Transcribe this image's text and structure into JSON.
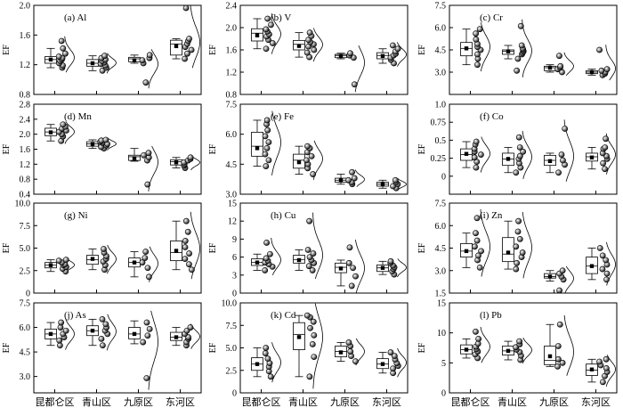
{
  "figure": {
    "y_axis_label": "EF",
    "x_categories": [
      "昆都仑区",
      "青山区",
      "九原区",
      "东河区"
    ]
  },
  "chart_data": [
    {
      "type": "box",
      "title": "(a) Al",
      "ylim": [
        0.8,
        2.0
      ],
      "yticks": [
        0.8,
        1.2,
        1.6,
        2.0
      ],
      "series": [
        {
          "category": "昆都仑区",
          "q1": 1.22,
          "median": 1.27,
          "q3": 1.31,
          "whisker_low": 1.16,
          "whisker_high": 1.42,
          "mean": 1.27,
          "points": [
            1.16,
            1.19,
            1.22,
            1.25,
            1.27,
            1.29,
            1.31,
            1.35,
            1.42,
            1.52
          ]
        },
        {
          "category": "青山区",
          "q1": 1.18,
          "median": 1.22,
          "q3": 1.27,
          "whisker_low": 1.12,
          "whisker_high": 1.32,
          "mean": 1.22,
          "points": [
            1.12,
            1.16,
            1.19,
            1.21,
            1.23,
            1.25,
            1.27,
            1.29,
            1.32
          ]
        },
        {
          "category": "九原区",
          "q1": 1.24,
          "median": 1.28,
          "q3": 1.3,
          "whisker_low": 1.22,
          "whisker_high": 1.33,
          "mean": 1.26,
          "points": [
            0.96,
            1.22,
            1.26,
            1.29,
            1.33
          ]
        },
        {
          "category": "东河区",
          "q1": 1.33,
          "median": 1.48,
          "q3": 1.53,
          "whisker_low": 1.28,
          "whisker_high": 1.55,
          "mean": 1.45,
          "points": [
            1.28,
            1.35,
            1.4,
            1.44,
            1.48,
            1.52,
            1.55,
            2.0
          ]
        }
      ]
    },
    {
      "type": "box",
      "title": "(b) V",
      "ylim": [
        0.8,
        2.4
      ],
      "yticks": [
        0.8,
        1.2,
        1.6,
        2.0,
        2.4
      ],
      "series": [
        {
          "category": "昆都仑区",
          "q1": 1.76,
          "median": 1.9,
          "q3": 1.98,
          "whisker_low": 1.62,
          "whisker_high": 2.16,
          "mean": 1.86,
          "points": [
            1.62,
            1.72,
            1.78,
            1.84,
            1.88,
            1.93,
            1.97,
            2.05,
            2.16
          ]
        },
        {
          "category": "青山区",
          "q1": 1.6,
          "median": 1.7,
          "q3": 1.77,
          "whisker_low": 1.47,
          "whisker_high": 1.91,
          "mean": 1.67,
          "points": [
            1.47,
            1.55,
            1.6,
            1.66,
            1.7,
            1.74,
            1.78,
            1.85,
            1.91
          ]
        },
        {
          "category": "九原区",
          "q1": 1.46,
          "median": 1.5,
          "q3": 1.52,
          "whisker_low": 1.44,
          "whisker_high": 1.54,
          "mean": 1.49,
          "points": [
            0.98,
            1.46,
            1.5,
            1.54
          ]
        },
        {
          "category": "东河区",
          "q1": 1.44,
          "median": 1.5,
          "q3": 1.55,
          "whisker_low": 1.36,
          "whisker_high": 1.62,
          "mean": 1.49,
          "points": [
            1.36,
            1.42,
            1.46,
            1.5,
            1.53,
            1.57,
            1.62,
            1.68
          ]
        }
      ]
    },
    {
      "type": "box",
      "title": "(c) Cr",
      "ylim": [
        1.5,
        7.5
      ],
      "yticks": [
        3.0,
        4.5,
        6.0,
        7.5
      ],
      "series": [
        {
          "category": "昆都仑区",
          "q1": 4.1,
          "median": 4.6,
          "q3": 5.0,
          "whisker_low": 3.5,
          "whisker_high": 5.9,
          "mean": 4.6,
          "points": [
            3.5,
            3.9,
            4.2,
            4.5,
            4.7,
            4.9,
            5.2,
            5.6,
            5.9
          ]
        },
        {
          "category": "青山区",
          "q1": 4.2,
          "median": 4.4,
          "q3": 4.5,
          "whisker_low": 3.9,
          "whisker_high": 4.8,
          "mean": 4.4,
          "points": [
            3.1,
            3.9,
            4.2,
            4.3,
            4.4,
            4.5,
            4.6,
            4.8,
            6.1
          ]
        },
        {
          "category": "九原区",
          "q1": 3.1,
          "median": 3.3,
          "q3": 3.4,
          "whisker_low": 3.0,
          "whisker_high": 3.5,
          "mean": 3.3,
          "points": [
            3.0,
            3.2,
            3.3,
            3.4,
            4.1
          ]
        },
        {
          "category": "东河区",
          "q1": 2.9,
          "median": 3.0,
          "q3": 3.1,
          "whisker_low": 2.8,
          "whisker_high": 3.2,
          "mean": 3.0,
          "points": [
            2.8,
            2.9,
            3.0,
            3.1,
            3.2,
            4.5
          ]
        }
      ]
    },
    {
      "type": "box",
      "title": "(d) Mn",
      "ylim": [
        0.4,
        2.8
      ],
      "yticks": [
        0.4,
        0.8,
        1.2,
        1.6,
        2.0,
        2.4,
        2.8
      ],
      "series": [
        {
          "category": "昆都仑区",
          "q1": 1.96,
          "median": 2.06,
          "q3": 2.16,
          "whisker_low": 1.82,
          "whisker_high": 2.26,
          "mean": 2.05,
          "points": [
            1.82,
            1.94,
            2.0,
            2.06,
            2.1,
            2.15,
            2.2,
            2.26
          ]
        },
        {
          "category": "青山区",
          "q1": 1.68,
          "median": 1.74,
          "q3": 1.8,
          "whisker_low": 1.62,
          "whisker_high": 1.85,
          "mean": 1.73,
          "points": [
            1.62,
            1.66,
            1.7,
            1.74,
            1.77,
            1.8,
            1.83,
            1.85
          ]
        },
        {
          "category": "九原区",
          "q1": 1.3,
          "median": 1.4,
          "q3": 1.44,
          "whisker_low": 1.28,
          "whisker_high": 1.62,
          "mean": 1.36,
          "points": [
            0.66,
            1.3,
            1.38,
            1.44,
            1.5
          ]
        },
        {
          "category": "东河区",
          "q1": 1.18,
          "median": 1.27,
          "q3": 1.32,
          "whisker_low": 1.1,
          "whisker_high": 1.38,
          "mean": 1.25,
          "points": [
            1.1,
            1.16,
            1.2,
            1.25,
            1.3,
            1.34,
            1.38
          ]
        }
      ]
    },
    {
      "type": "box",
      "title": "(e) Fe",
      "ylim": [
        3.0,
        7.5
      ],
      "yticks": [
        3.0,
        4.5,
        6.0,
        7.5
      ],
      "series": [
        {
          "category": "昆都仑区",
          "q1": 4.9,
          "median": 5.4,
          "q3": 6.1,
          "whisker_low": 4.4,
          "whisker_high": 6.7,
          "mean": 5.3,
          "points": [
            4.4,
            4.7,
            5.0,
            5.3,
            5.6,
            5.9,
            6.2,
            6.5,
            6.7
          ]
        },
        {
          "category": "青山区",
          "q1": 4.3,
          "median": 4.7,
          "q3": 5.0,
          "whisker_low": 4.0,
          "whisker_high": 5.4,
          "mean": 4.6,
          "points": [
            4.0,
            4.3,
            4.5,
            4.7,
            4.9,
            5.1,
            5.3,
            5.4
          ]
        },
        {
          "category": "九原区",
          "q1": 3.6,
          "median": 3.7,
          "q3": 3.8,
          "whisker_low": 3.5,
          "whisker_high": 4.0,
          "mean": 3.7,
          "points": [
            3.5,
            3.6,
            3.7,
            3.8,
            4.1
          ]
        },
        {
          "category": "东河区",
          "q1": 3.4,
          "median": 3.5,
          "q3": 3.6,
          "whisker_low": 3.3,
          "whisker_high": 3.7,
          "mean": 3.5,
          "points": [
            3.3,
            3.4,
            3.5,
            3.6,
            3.7
          ]
        }
      ]
    },
    {
      "type": "box",
      "title": "(f) Co",
      "ylim": [
        -0.25,
        1.0
      ],
      "yticks": [
        0,
        0.25,
        0.5,
        0.75,
        1.0
      ],
      "series": [
        {
          "category": "昆都仑区",
          "q1": 0.22,
          "median": 0.3,
          "q3": 0.38,
          "whisker_low": 0.12,
          "whisker_high": 0.48,
          "mean": 0.31,
          "points": [
            0.12,
            0.2,
            0.26,
            0.3,
            0.34,
            0.38,
            0.44,
            0.48
          ]
        },
        {
          "category": "青山区",
          "q1": 0.15,
          "median": 0.24,
          "q3": 0.32,
          "whisker_low": 0.05,
          "whisker_high": 0.4,
          "mean": 0.24,
          "points": [
            0.05,
            0.12,
            0.18,
            0.24,
            0.28,
            0.34,
            0.4,
            0.54
          ]
        },
        {
          "category": "九原区",
          "q1": 0.15,
          "median": 0.22,
          "q3": 0.29,
          "whisker_low": 0.05,
          "whisker_high": 0.32,
          "mean": 0.21,
          "points": [
            0.05,
            0.16,
            0.22,
            0.3,
            0.66
          ]
        },
        {
          "category": "东河区",
          "q1": 0.21,
          "median": 0.27,
          "q3": 0.32,
          "whisker_low": 0.1,
          "whisker_high": 0.4,
          "mean": 0.26,
          "points": [
            0.1,
            0.18,
            0.24,
            0.28,
            0.32,
            0.38,
            0.4,
            0.52
          ]
        }
      ]
    },
    {
      "type": "box",
      "title": "(g) Ni",
      "ylim": [
        0,
        10.0
      ],
      "yticks": [
        0,
        2.5,
        5.0,
        7.5,
        10.0
      ],
      "series": [
        {
          "category": "昆都仑区",
          "q1": 2.8,
          "median": 3.1,
          "q3": 3.4,
          "whisker_low": 2.4,
          "whisker_high": 3.7,
          "mean": 3.1,
          "points": [
            2.4,
            2.7,
            2.9,
            3.1,
            3.2,
            3.4,
            3.6,
            3.7
          ]
        },
        {
          "category": "青山区",
          "q1": 3.2,
          "median": 3.7,
          "q3": 4.2,
          "whisker_low": 2.6,
          "whisker_high": 4.9,
          "mean": 3.8,
          "points": [
            2.6,
            3.1,
            3.5,
            3.8,
            4.1,
            4.5,
            4.9
          ]
        },
        {
          "category": "九原区",
          "q1": 2.9,
          "median": 3.4,
          "q3": 3.9,
          "whisker_low": 1.8,
          "whisker_high": 4.6,
          "mean": 3.4,
          "points": [
            1.8,
            2.8,
            3.4,
            3.9,
            4.6
          ]
        },
        {
          "category": "东河区",
          "q1": 3.6,
          "median": 4.5,
          "q3": 5.8,
          "whisker_low": 2.6,
          "whisker_high": 8.0,
          "mean": 4.7,
          "points": [
            2.6,
            3.2,
            3.8,
            4.4,
            5.1,
            5.8,
            6.8,
            8.0
          ]
        }
      ]
    },
    {
      "type": "box",
      "title": "(h) Cu",
      "ylim": [
        0,
        15.0
      ],
      "yticks": [
        0,
        3,
        6,
        9,
        12,
        15
      ],
      "series": [
        {
          "category": "昆都仑区",
          "q1": 4.6,
          "median": 5.1,
          "q3": 5.7,
          "whisker_low": 3.8,
          "whisker_high": 6.5,
          "mean": 5.1,
          "points": [
            3.8,
            4.4,
            4.8,
            5.1,
            5.4,
            5.8,
            6.5,
            8.4
          ]
        },
        {
          "category": "青山区",
          "q1": 5.0,
          "median": 5.6,
          "q3": 6.3,
          "whisker_low": 3.8,
          "whisker_high": 7.2,
          "mean": 5.5,
          "points": [
            3.8,
            4.5,
            5.0,
            5.5,
            6.0,
            6.6,
            7.2,
            12.0
          ]
        },
        {
          "category": "九原区",
          "q1": 3.4,
          "median": 4.3,
          "q3": 5.0,
          "whisker_low": 1.2,
          "whisker_high": 5.5,
          "mean": 4.1,
          "points": [
            1.2,
            2.8,
            4.2,
            5.0,
            7.6
          ]
        },
        {
          "category": "东河区",
          "q1": 3.6,
          "median": 4.2,
          "q3": 4.7,
          "whisker_low": 3.1,
          "whisker_high": 5.3,
          "mean": 4.2,
          "points": [
            3.1,
            3.6,
            4.0,
            4.3,
            4.6,
            5.0,
            5.3
          ]
        }
      ]
    },
    {
      "type": "box",
      "title": "(i) Zn",
      "ylim": [
        1.5,
        7.5
      ],
      "yticks": [
        1.5,
        3.0,
        4.5,
        6.0,
        7.5
      ],
      "series": [
        {
          "category": "昆都仑区",
          "q1": 3.9,
          "median": 4.3,
          "q3": 4.8,
          "whisker_low": 3.2,
          "whisker_high": 5.5,
          "mean": 4.3,
          "points": [
            3.2,
            3.7,
            4.0,
            4.3,
            4.6,
            5.0,
            5.5,
            6.5
          ]
        },
        {
          "category": "青山区",
          "q1": 3.6,
          "median": 4.1,
          "q3": 5.2,
          "whisker_low": 3.1,
          "whisker_high": 6.3,
          "mean": 4.2,
          "points": [
            3.1,
            3.5,
            3.9,
            4.2,
            4.6,
            5.1,
            5.6,
            6.3
          ]
        },
        {
          "category": "九原区",
          "q1": 2.5,
          "median": 2.6,
          "q3": 2.8,
          "whisker_low": 2.3,
          "whisker_high": 3.0,
          "mean": 2.6,
          "points": [
            1.6,
            2.4,
            2.6,
            2.8,
            3.0
          ]
        },
        {
          "category": "东河区",
          "q1": 2.8,
          "median": 3.3,
          "q3": 3.9,
          "whisker_low": 2.4,
          "whisker_high": 4.5,
          "mean": 3.3,
          "points": [
            2.4,
            2.8,
            3.1,
            3.4,
            3.7,
            4.0,
            4.5
          ]
        }
      ]
    },
    {
      "type": "box",
      "title": "(j) As",
      "ylim": [
        2.0,
        7.5
      ],
      "yticks": [
        3.0,
        4.5,
        6.0,
        7.5
      ],
      "series": [
        {
          "category": "昆都仑区",
          "q1": 5.3,
          "median": 5.6,
          "q3": 5.9,
          "whisker_low": 4.9,
          "whisker_high": 6.3,
          "mean": 5.6,
          "points": [
            4.9,
            5.2,
            5.4,
            5.6,
            5.8,
            6.0,
            6.3
          ]
        },
        {
          "category": "青山区",
          "q1": 5.5,
          "median": 5.8,
          "q3": 6.1,
          "whisker_low": 4.9,
          "whisker_high": 6.5,
          "mean": 5.8,
          "points": [
            4.9,
            5.3,
            5.6,
            5.8,
            6.0,
            6.2,
            6.5
          ]
        },
        {
          "category": "九原区",
          "q1": 5.3,
          "median": 5.6,
          "q3": 6.0,
          "whisker_low": 5.0,
          "whisker_high": 6.4,
          "mean": 5.6,
          "points": [
            2.9,
            5.1,
            5.5,
            5.9,
            6.3
          ]
        },
        {
          "category": "东河区",
          "q1": 5.2,
          "median": 5.4,
          "q3": 5.7,
          "whisker_low": 4.9,
          "whisker_high": 6.0,
          "mean": 5.4,
          "points": [
            4.9,
            5.1,
            5.3,
            5.4,
            5.6,
            5.8,
            6.0
          ]
        }
      ]
    },
    {
      "type": "box",
      "title": "(k) Cd",
      "ylim": [
        0,
        10.0
      ],
      "yticks": [
        0,
        2.5,
        5.0,
        7.5,
        10.0
      ],
      "series": [
        {
          "category": "昆都仑区",
          "q1": 2.5,
          "median": 3.2,
          "q3": 3.9,
          "whisker_low": 1.8,
          "whisker_high": 5.0,
          "mean": 3.2,
          "points": [
            1.8,
            2.4,
            2.9,
            3.3,
            3.8,
            4.4,
            5.0
          ]
        },
        {
          "category": "青山区",
          "q1": 4.8,
          "median": 6.5,
          "q3": 7.8,
          "whisker_low": 1.8,
          "whisker_high": 8.6,
          "mean": 6.2,
          "points": [
            1.8,
            4.0,
            5.4,
            6.4,
            7.2,
            7.9,
            8.4,
            8.6
          ]
        },
        {
          "category": "九原区",
          "q1": 4.0,
          "median": 4.6,
          "q3": 5.2,
          "whisker_low": 3.5,
          "whisker_high": 5.6,
          "mean": 4.5,
          "points": [
            3.5,
            4.1,
            4.6,
            5.2,
            5.6
          ]
        },
        {
          "category": "东河区",
          "q1": 2.7,
          "median": 3.2,
          "q3": 3.8,
          "whisker_low": 2.2,
          "whisker_high": 4.5,
          "mean": 3.2,
          "points": [
            2.2,
            2.7,
            3.0,
            3.3,
            3.7,
            4.1,
            4.5
          ]
        }
      ]
    },
    {
      "type": "box",
      "title": "(l) Pb",
      "ylim": [
        0,
        15.0
      ],
      "yticks": [
        0,
        5,
        10,
        15
      ],
      "series": [
        {
          "category": "昆都仑区",
          "q1": 6.5,
          "median": 7.2,
          "q3": 8.0,
          "whisker_low": 5.8,
          "whisker_high": 9.0,
          "mean": 7.2,
          "points": [
            5.8,
            6.4,
            6.9,
            7.3,
            7.7,
            8.2,
            9.0,
            10.2
          ]
        },
        {
          "category": "青山区",
          "q1": 6.3,
          "median": 7.0,
          "q3": 7.8,
          "whisker_low": 5.5,
          "whisker_high": 8.6,
          "mean": 7.0,
          "points": [
            5.5,
            6.2,
            6.8,
            7.2,
            7.6,
            8.1,
            8.6
          ]
        },
        {
          "category": "九原区",
          "q1": 4.7,
          "median": 5.4,
          "q3": 7.8,
          "whisker_low": 4.4,
          "whisker_high": 11.4,
          "mean": 6.1,
          "points": [
            4.4,
            5.0,
            5.6,
            7.8,
            11.4
          ]
        },
        {
          "category": "东河区",
          "q1": 2.9,
          "median": 3.8,
          "q3": 4.8,
          "whisker_low": 1.8,
          "whisker_high": 5.6,
          "mean": 3.9,
          "points": [
            1.8,
            2.8,
            3.5,
            4.1,
            4.6,
            5.2,
            5.6
          ]
        }
      ]
    }
  ]
}
